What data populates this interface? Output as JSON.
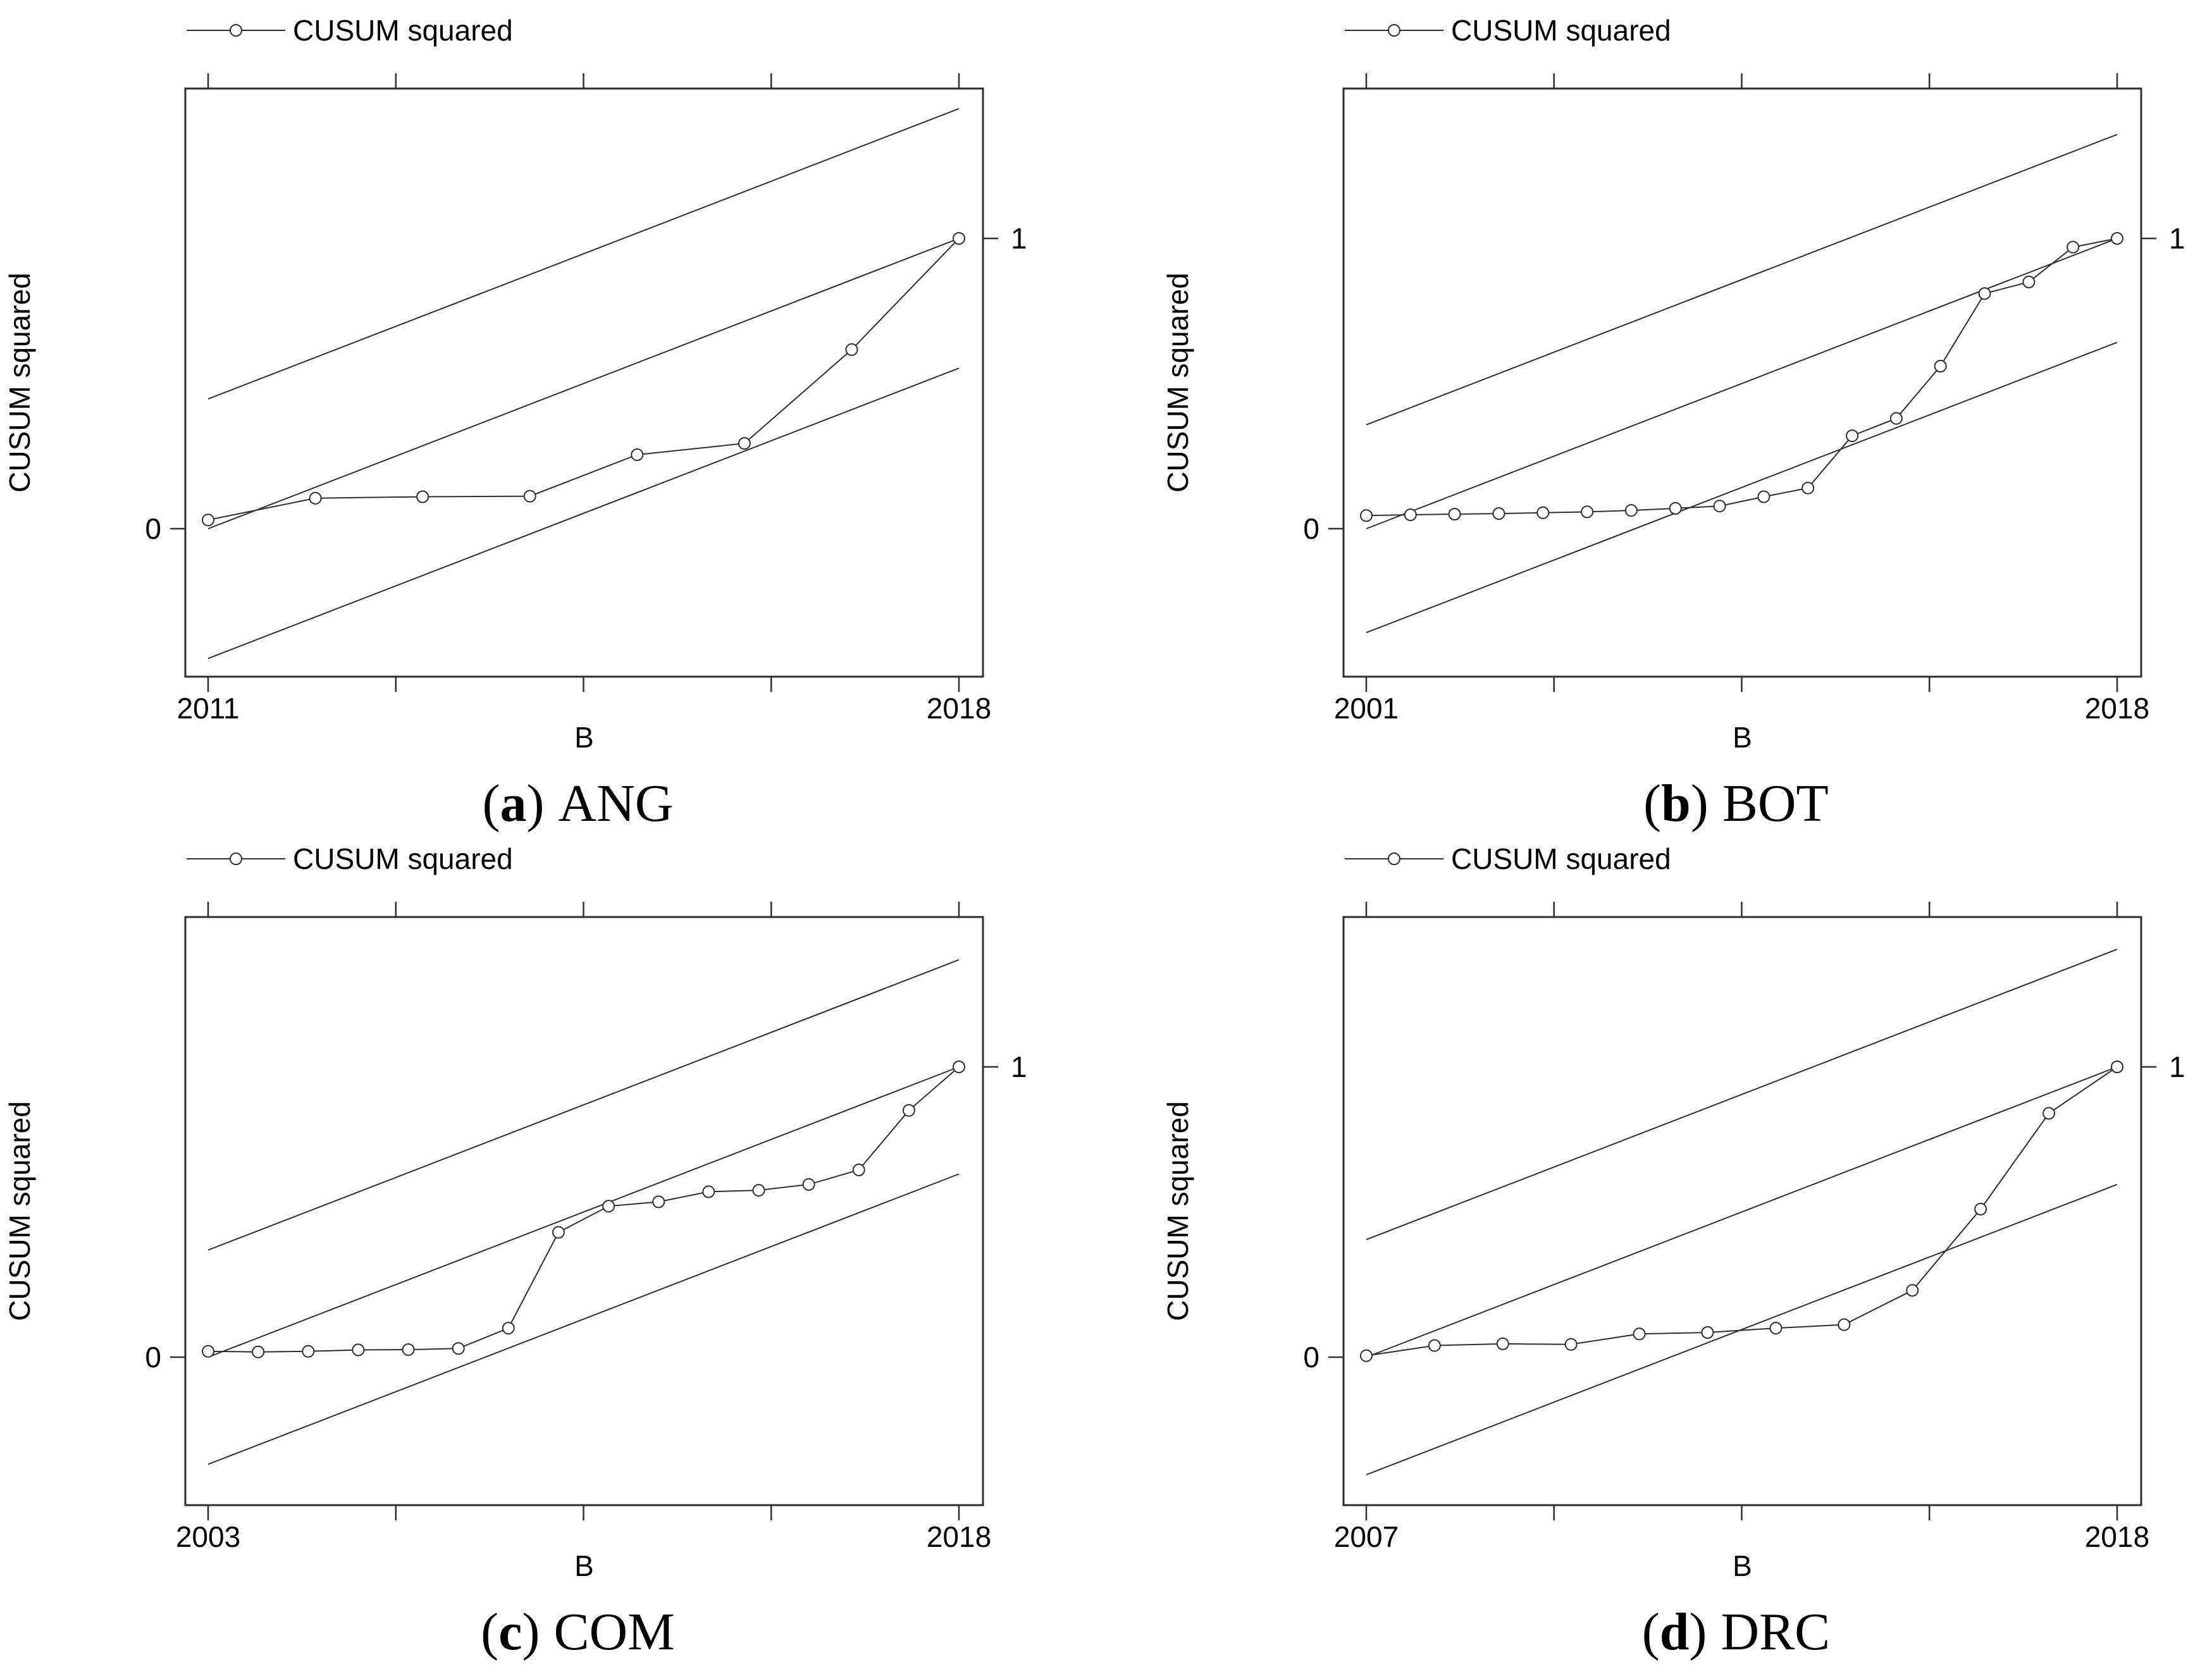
{
  "figure": {
    "background_color": "#ffffff",
    "stroke_color": "#2e2e2e",
    "text_color": "#000000",
    "legend_label": "CUSUM squared",
    "y_axis_label": "CUSUM squared",
    "x_axis_label": "B"
  },
  "chart_data": [
    {
      "id": "a",
      "type": "line",
      "series_name": "CUSUM squared",
      "caption": {
        "open": "(",
        "letter": "a",
        "close": ")",
        "name": "ANG"
      },
      "xlabel": "B",
      "ylabel": "CUSUM squared",
      "x_tick_labels": [
        "2011",
        "2018"
      ],
      "y_tick_labels": [
        "0",
        "1"
      ],
      "x": [
        2011,
        2012,
        2013,
        2014,
        2015,
        2016,
        2017,
        2018
      ],
      "values": [
        0.03,
        0.105,
        0.11,
        0.112,
        0.255,
        0.294,
        0.617,
        1.0
      ],
      "reference_line": {
        "start": [
          2011,
          0
        ],
        "end": [
          2018,
          1
        ]
      },
      "significance_band_offset": 0.447,
      "ylim": [
        -0.51,
        1.52
      ],
      "grid": false,
      "legend_position": "top-left"
    },
    {
      "id": "b",
      "type": "line",
      "series_name": "CUSUM squared",
      "caption": {
        "open": "(",
        "letter": "b",
        "close": ")",
        "name": "BOT"
      },
      "xlabel": "B",
      "ylabel": "CUSUM squared",
      "x_tick_labels": [
        "2001",
        "2018"
      ],
      "y_tick_labels": [
        "0",
        "1"
      ],
      "x": [
        2001,
        2002,
        2003,
        2004,
        2005,
        2006,
        2007,
        2008,
        2009,
        2010,
        2011,
        2012,
        2013,
        2014,
        2015,
        2016,
        2017,
        2018
      ],
      "values": [
        0.045,
        0.048,
        0.05,
        0.052,
        0.055,
        0.058,
        0.063,
        0.07,
        0.078,
        0.11,
        0.14,
        0.32,
        0.38,
        0.56,
        0.81,
        0.85,
        0.97,
        1.0
      ],
      "reference_line": {
        "start": [
          2001,
          0
        ],
        "end": [
          2018,
          1
        ]
      },
      "significance_band_offset": 0.358,
      "ylim": [
        -0.51,
        1.52
      ],
      "grid": false,
      "legend_position": "top-left"
    },
    {
      "id": "c",
      "type": "line",
      "series_name": "CUSUM squared",
      "caption": {
        "open": "(",
        "letter": "c",
        "close": ")",
        "name": "COM"
      },
      "xlabel": "B",
      "ylabel": "CUSUM squared",
      "x_tick_labels": [
        "2003",
        "2018"
      ],
      "y_tick_labels": [
        "0",
        "1"
      ],
      "x": [
        2003,
        2004,
        2005,
        2006,
        2007,
        2008,
        2009,
        2010,
        2011,
        2012,
        2013,
        2014,
        2015,
        2016,
        2017,
        2018
      ],
      "values": [
        0.02,
        0.018,
        0.02,
        0.025,
        0.026,
        0.03,
        0.1,
        0.43,
        0.52,
        0.535,
        0.57,
        0.575,
        0.595,
        0.645,
        0.85,
        1.0
      ],
      "reference_line": {
        "start": [
          2003,
          0
        ],
        "end": [
          2018,
          1
        ]
      },
      "significance_band_offset": 0.369,
      "ylim": [
        -0.51,
        1.52
      ],
      "grid": false,
      "legend_position": "top-left"
    },
    {
      "id": "d",
      "type": "line",
      "series_name": "CUSUM squared",
      "caption": {
        "open": "(",
        "letter": "d",
        "close": ")",
        "name": "DRC"
      },
      "xlabel": "B",
      "ylabel": "CUSUM squared",
      "x_tick_labels": [
        "2007",
        "2018"
      ],
      "y_tick_labels": [
        "0",
        "1"
      ],
      "x": [
        2007,
        2008,
        2009,
        2010,
        2011,
        2012,
        2013,
        2014,
        2015,
        2016,
        2017,
        2018
      ],
      "values": [
        0.005,
        0.04,
        0.046,
        0.044,
        0.08,
        0.085,
        0.1,
        0.112,
        0.23,
        0.51,
        0.84,
        1.0
      ],
      "reference_line": {
        "start": [
          2007,
          0
        ],
        "end": [
          2018,
          1
        ]
      },
      "significance_band_offset": 0.405,
      "ylim": [
        -0.51,
        1.52
      ],
      "grid": false,
      "legend_position": "top-left"
    }
  ]
}
